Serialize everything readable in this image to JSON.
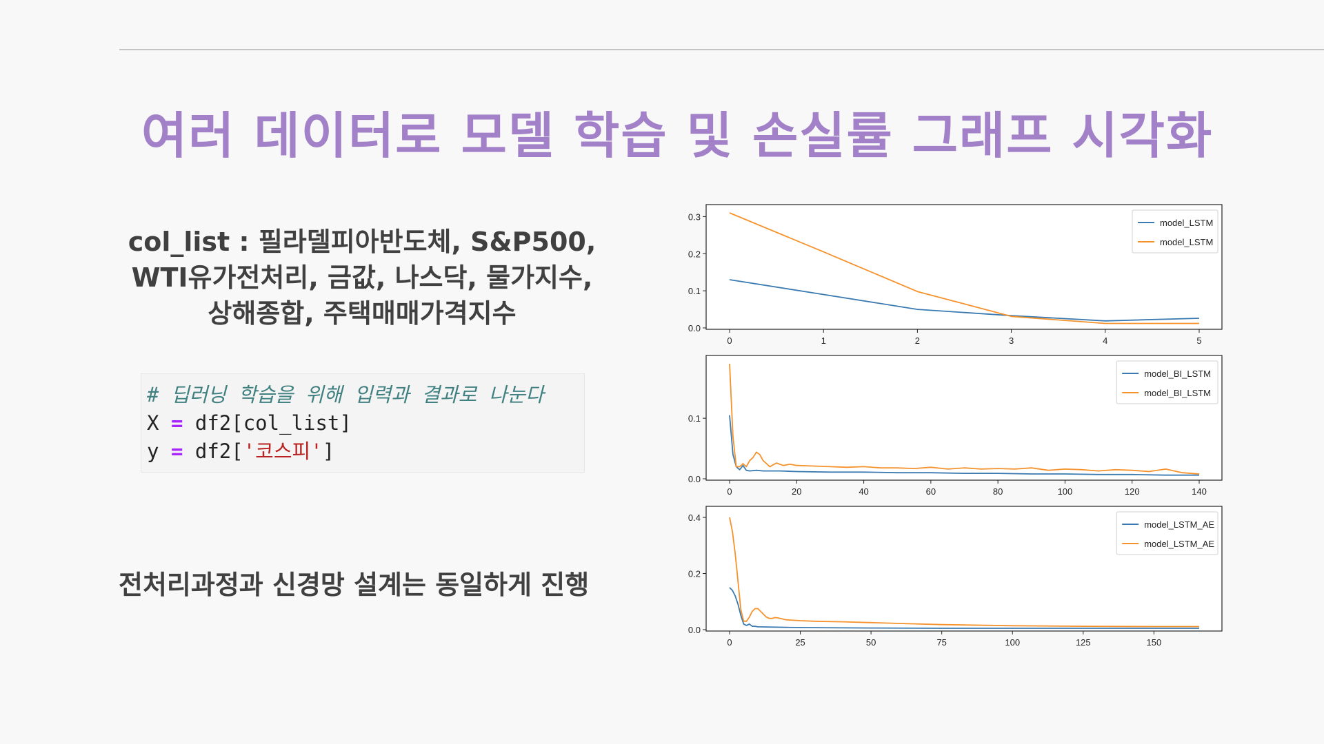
{
  "slide": {
    "title": "여러 데이터로 모델 학습 및 손실률 그래프 시각화",
    "description_lines": [
      "col_list : 필라델피아반도체, S&P500,",
      "WTI유가전처리, 금값, 나스닥, 물가지수,",
      "상해종합, 주택매매가격지수"
    ],
    "code": {
      "comment": "# 딥러닝 학습을 위해 입력과 결과로 나눈다",
      "line2": {
        "var": "X",
        "op": "=",
        "rest": "df2[col_list]"
      },
      "line3": {
        "var": "y",
        "op": "=",
        "pre": "df2[",
        "str": "'코스피'",
        "post": "]"
      }
    },
    "note": "전처리과정과 신경망 설계는 동일하게 진행"
  },
  "colors": {
    "series_blue": "#3a7ab0",
    "series_orange": "#f5922c",
    "title": "#a281c9"
  },
  "chart_data": [
    {
      "type": "line",
      "ylim": [
        0,
        0.31
      ],
      "xlim": [
        0,
        5
      ],
      "xticks": [
        "0",
        "1",
        "2",
        "3",
        "4",
        "5"
      ],
      "yticks": [
        "0.0",
        "0.1",
        "0.2",
        "0.3"
      ],
      "legend_position": "top-right",
      "series": [
        {
          "name": "model_LSTM",
          "color": "#3a7ab0",
          "x": [
            0,
            1,
            2,
            3,
            4,
            5
          ],
          "values": [
            0.13,
            0.09,
            0.05,
            0.033,
            0.019,
            0.026
          ]
        },
        {
          "name": "model_LSTM",
          "color": "#f5922c",
          "x": [
            0,
            1,
            2,
            3,
            4,
            5
          ],
          "values": [
            0.31,
            0.205,
            0.098,
            0.031,
            0.012,
            0.012
          ]
        }
      ]
    },
    {
      "type": "line",
      "ylim": [
        0,
        0.19
      ],
      "xlim": [
        0,
        140
      ],
      "xticks": [
        "0",
        "20",
        "40",
        "60",
        "80",
        "100",
        "120",
        "140"
      ],
      "yticks": [
        "0.0",
        "0.1"
      ],
      "legend_position": "top-right",
      "series": [
        {
          "name": "model_BI_LSTM",
          "color": "#3a7ab0",
          "x": [
            0,
            1,
            2,
            3,
            4,
            5,
            6,
            8,
            10,
            15,
            20,
            30,
            40,
            50,
            60,
            70,
            80,
            90,
            100,
            110,
            120,
            130,
            140
          ],
          "values": [
            0.105,
            0.04,
            0.02,
            0.015,
            0.022,
            0.014,
            0.013,
            0.014,
            0.013,
            0.013,
            0.012,
            0.011,
            0.011,
            0.01,
            0.01,
            0.009,
            0.009,
            0.008,
            0.008,
            0.007,
            0.007,
            0.006,
            0.006
          ]
        },
        {
          "name": "model_BI_LSTM",
          "color": "#f5922c",
          "x": [
            0,
            1,
            2,
            3,
            4,
            5,
            6,
            7,
            8,
            9,
            10,
            11,
            12,
            14,
            16,
            18,
            20,
            25,
            30,
            35,
            40,
            45,
            50,
            55,
            60,
            65,
            70,
            75,
            80,
            85,
            90,
            95,
            100,
            105,
            110,
            115,
            120,
            125,
            130,
            135,
            140
          ],
          "values": [
            0.19,
            0.07,
            0.02,
            0.02,
            0.025,
            0.02,
            0.03,
            0.035,
            0.044,
            0.04,
            0.03,
            0.025,
            0.02,
            0.026,
            0.022,
            0.024,
            0.022,
            0.021,
            0.02,
            0.019,
            0.02,
            0.018,
            0.018,
            0.017,
            0.019,
            0.016,
            0.018,
            0.016,
            0.017,
            0.016,
            0.018,
            0.014,
            0.016,
            0.015,
            0.013,
            0.015,
            0.014,
            0.012,
            0.016,
            0.01,
            0.008
          ]
        }
      ]
    },
    {
      "type": "line",
      "ylim": [
        0,
        0.41
      ],
      "xlim": [
        0,
        166
      ],
      "xticks": [
        "0",
        "25",
        "50",
        "75",
        "100",
        "125",
        "150"
      ],
      "yticks": [
        "0.0",
        "0.2",
        "0.4"
      ],
      "legend_position": "top-right",
      "series": [
        {
          "name": "model_LSTM_AE",
          "color": "#3a7ab0",
          "x": [
            0,
            1,
            2,
            3,
            4,
            5,
            6,
            7,
            8,
            9,
            10,
            15,
            20,
            30,
            50,
            75,
            100,
            125,
            150,
            166
          ],
          "values": [
            0.15,
            0.14,
            0.12,
            0.09,
            0.05,
            0.02,
            0.015,
            0.02,
            0.012,
            0.012,
            0.01,
            0.009,
            0.008,
            0.007,
            0.006,
            0.005,
            0.005,
            0.005,
            0.005,
            0.005
          ]
        },
        {
          "name": "model_LSTM_AE",
          "color": "#f5922c",
          "x": [
            0,
            1,
            2,
            3,
            4,
            5,
            6,
            7,
            8,
            9,
            10,
            11,
            12,
            13,
            14,
            15,
            16,
            17,
            18,
            20,
            25,
            30,
            40,
            50,
            60,
            75,
            100,
            125,
            150,
            166
          ],
          "values": [
            0.4,
            0.35,
            0.27,
            0.17,
            0.07,
            0.03,
            0.03,
            0.045,
            0.065,
            0.075,
            0.075,
            0.065,
            0.055,
            0.045,
            0.04,
            0.04,
            0.043,
            0.042,
            0.04,
            0.035,
            0.032,
            0.03,
            0.028,
            0.025,
            0.022,
            0.018,
            0.014,
            0.012,
            0.011,
            0.011
          ]
        }
      ]
    }
  ]
}
